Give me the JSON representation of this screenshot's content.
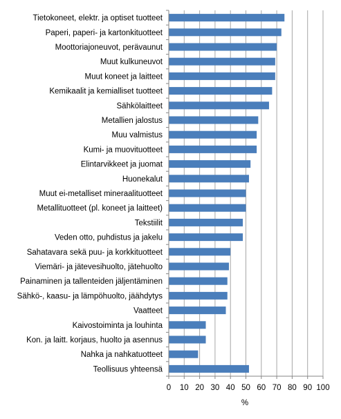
{
  "chart_data": {
    "type": "bar",
    "orientation": "horizontal",
    "categories": [
      "Tietokoneet, elektr. ja optiset tuotteet",
      "Paperi, paperi- ja kartonkituotteet",
      "Moottoriajoneuvot, perävaunut",
      "Muut kulkuneuvot",
      "Muut koneet ja laitteet",
      "Kemikaalit ja kemialliset tuotteet",
      "Sähkölaitteet",
      "Metallien jalostus",
      "Muu valmistus",
      "Kumi- ja muovituotteet",
      "Elintarvikkeet ja juomat",
      "Huonekalut",
      "Muut ei-metalliset mineraalituotteet",
      "Metallituotteet (pl. koneet ja laitteet)",
      "Tekstiilit",
      "Veden otto, puhdistus ja jakelu",
      "Sahatavara sekä puu- ja korkkituotteet",
      "Viemäri- ja jätevesihuolto, jätehuolto",
      "Painaminen ja tallenteiden jäljentäminen",
      "Sähkö-, kaasu- ja lämpöhuolto, jäähdytys",
      "Vaatteet",
      "Kaivostoiminta ja louhinta",
      "Kon. ja laitt. korjaus, huolto ja asennus",
      "Nahka ja nahkatuotteet",
      "Teollisuus yhteensä"
    ],
    "values": [
      75,
      73,
      70,
      69,
      69,
      67,
      65,
      58,
      57,
      57,
      53,
      52,
      50,
      50,
      48,
      48,
      40,
      39,
      38,
      38,
      37,
      24,
      24,
      19,
      52
    ],
    "xlabel": "%",
    "xlim": [
      0,
      100
    ],
    "xticks": [
      0,
      10,
      20,
      30,
      40,
      50,
      60,
      70,
      80,
      90,
      100
    ],
    "grid": "vertical",
    "bar_color": "#4a7ebb",
    "grid_color": "#a6a6a6",
    "axis_color": "#868686"
  }
}
